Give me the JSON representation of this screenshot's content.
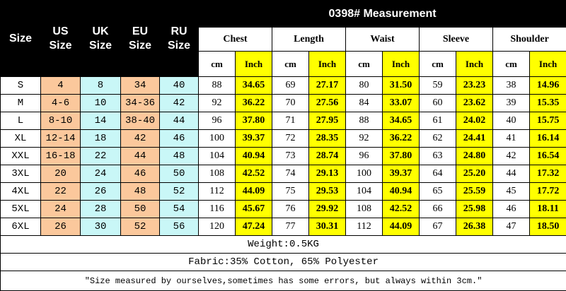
{
  "header": {
    "title": "0398# Measurement",
    "size_columns": [
      "Size",
      "US Size",
      "UK Size",
      "EU Size",
      "RU Size"
    ],
    "groups": [
      "Chest",
      "Length",
      "Waist",
      "Sleeve",
      "Shoulder"
    ],
    "units": [
      "cm",
      "Inch",
      "cm",
      "Inch",
      "cm",
      "Inch",
      "cm",
      "Inch",
      "cm",
      "Inch"
    ]
  },
  "table": {
    "rows": [
      [
        "S",
        "4",
        "8",
        "34",
        "40",
        "88",
        "34.65",
        "69",
        "27.17",
        "80",
        "31.50",
        "59",
        "23.23",
        "38",
        "14.96"
      ],
      [
        "M",
        "4-6",
        "10",
        "34-36",
        "42",
        "92",
        "36.22",
        "70",
        "27.56",
        "84",
        "33.07",
        "60",
        "23.62",
        "39",
        "15.35"
      ],
      [
        "L",
        "8-10",
        "14",
        "38-40",
        "44",
        "96",
        "37.80",
        "71",
        "27.95",
        "88",
        "34.65",
        "61",
        "24.02",
        "40",
        "15.75"
      ],
      [
        "XL",
        "12-14",
        "18",
        "42",
        "46",
        "100",
        "39.37",
        "72",
        "28.35",
        "92",
        "36.22",
        "62",
        "24.41",
        "41",
        "16.14"
      ],
      [
        "XXL",
        "16-18",
        "22",
        "44",
        "48",
        "104",
        "40.94",
        "73",
        "28.74",
        "96",
        "37.80",
        "63",
        "24.80",
        "42",
        "16.54"
      ],
      [
        "3XL",
        "20",
        "24",
        "46",
        "50",
        "108",
        "42.52",
        "74",
        "29.13",
        "100",
        "39.37",
        "64",
        "25.20",
        "44",
        "17.32"
      ],
      [
        "4XL",
        "22",
        "26",
        "48",
        "52",
        "112",
        "44.09",
        "75",
        "29.53",
        "104",
        "40.94",
        "65",
        "25.59",
        "45",
        "17.72"
      ],
      [
        "5XL",
        "24",
        "28",
        "50",
        "54",
        "116",
        "45.67",
        "76",
        "29.92",
        "108",
        "42.52",
        "66",
        "25.98",
        "46",
        "18.11"
      ],
      [
        "6XL",
        "26",
        "30",
        "52",
        "56",
        "120",
        "47.24",
        "77",
        "30.31",
        "112",
        "44.09",
        "67",
        "26.38",
        "47",
        "18.50"
      ]
    ]
  },
  "footer": {
    "weight": "Weight:0.5KG",
    "fabric": "Fabric:35% Cotton, 65% Polyester",
    "note": "\"Size measured by ourselves,sometimes has some errors, but always within 3cm.\""
  }
}
